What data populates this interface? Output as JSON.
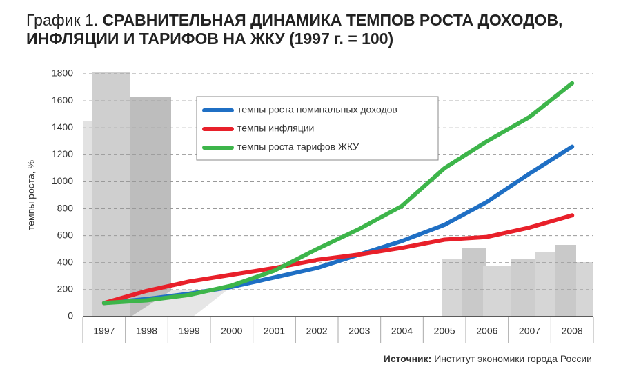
{
  "chart_data": {
    "type": "line",
    "figure_label": "График 1.",
    "title": "СРАВНИТЕЛЬНАЯ ДИНАМИКА ТЕМПОВ РОСТА ДОХОДОВ, ИНФЛЯЦИИ И ТАРИФОВ НА ЖКУ (1997 г. = 100)",
    "y_label": "темпы роста, %",
    "categories": [
      "1997",
      "1998",
      "1999",
      "2000",
      "2001",
      "2002",
      "2003",
      "2004",
      "2005",
      "2006",
      "2007",
      "2008"
    ],
    "series": [
      {
        "name": "темпы роста номинальных доходов",
        "color": "#1f6fc4",
        "values": [
          100,
          130,
          170,
          220,
          290,
          360,
          460,
          560,
          680,
          850,
          1060,
          1260
        ]
      },
      {
        "name": "темпы инфляции",
        "color": "#e8202a",
        "values": [
          100,
          190,
          260,
          310,
          360,
          420,
          460,
          510,
          570,
          590,
          660,
          750
        ]
      },
      {
        "name": "темпы роста тарифов ЖКУ",
        "color": "#3db54a",
        "values": [
          100,
          120,
          160,
          230,
          340,
          500,
          650,
          820,
          1100,
          1300,
          1480,
          1730
        ]
      }
    ],
    "ylim": [
      0,
      1800
    ],
    "yticks": [
      0,
      200,
      400,
      600,
      800,
      1000,
      1200,
      1400,
      1600,
      1800
    ],
    "grid": true,
    "source_label": "Источник:",
    "source": "Институт экономики города России"
  }
}
